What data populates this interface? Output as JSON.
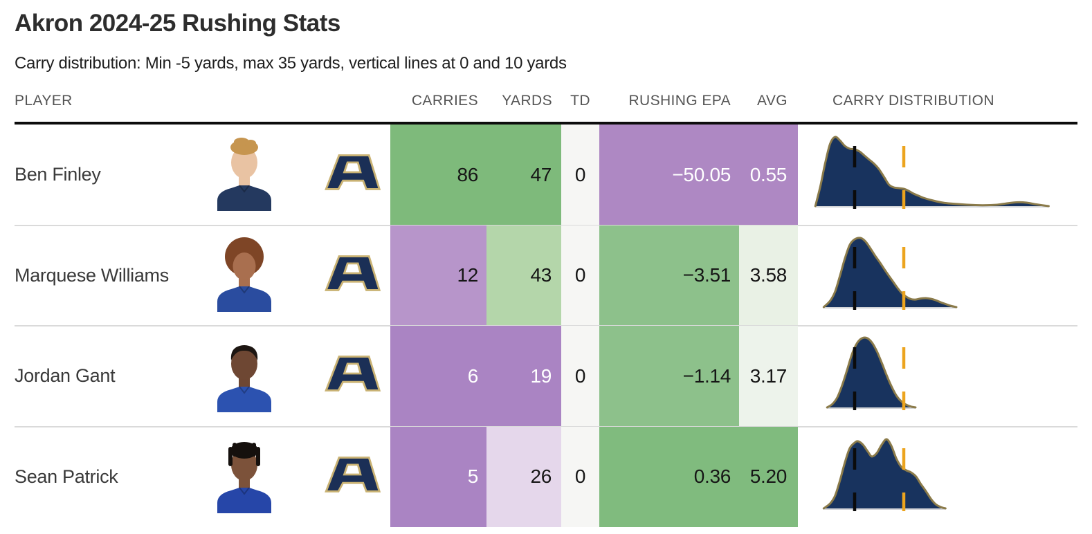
{
  "title": "Akron 2024-25 Rushing Stats",
  "subtitle": "Carry distribution: Min -5 yards, max 35 yards, vertical lines at 0 and 10 yards",
  "columns": {
    "player": "PLAYER",
    "carries": "CARRIES",
    "yards": "YARDS",
    "td": "TD",
    "rushing_epa": "RUSHING EPA",
    "avg": "AVG",
    "carry_distribution": "CARRY DISTRIBUTION"
  },
  "colors": {
    "density_fill": "#18335e",
    "density_stroke": "#8b7b4a",
    "vline_zero": "#0b0b0b",
    "vline_ten": "#eca41e",
    "baseline": "#c3c6ca",
    "separator": "#dadada",
    "header_rule": "#0d0d0d",
    "header_text": "#545454",
    "logo_navy": "#1b2f56",
    "logo_outline": "#c9b273"
  },
  "players": [
    {
      "name": "Ben Finley",
      "carries": "86",
      "yards": "47",
      "td": "0",
      "rushing_epa": "−50.05",
      "avg": "0.55",
      "cell_colors": {
        "carries_bg": "#7eba7b",
        "carries_fg": "#161616",
        "yards_bg": "#7eba7b",
        "yards_fg": "#161616",
        "td_bg": "#f6f6f4",
        "td_fg": "#161616",
        "epa_bg": "#ae88c3",
        "epa_fg": "#ffffff",
        "avg_bg": "#ae88c3",
        "avg_fg": "#ffffff"
      },
      "avatar": {
        "skin": "#e9c3a3",
        "hair": "#c6954f",
        "jersey": "#24395f",
        "hair_style": "quiff"
      }
    },
    {
      "name": "Marquese Williams",
      "carries": "12",
      "yards": "43",
      "td": "0",
      "rushing_epa": "−3.51",
      "avg": "3.58",
      "cell_colors": {
        "carries_bg": "#b795ca",
        "carries_fg": "#161616",
        "yards_bg": "#b4d6aa",
        "yards_fg": "#161616",
        "td_bg": "#f6f6f4",
        "td_fg": "#161616",
        "epa_bg": "#8dc18b",
        "epa_fg": "#161616",
        "avg_bg": "#e9f1e5",
        "avg_fg": "#161616"
      },
      "avatar": {
        "skin": "#a96f4f",
        "hair": "#7e4526",
        "jersey": "#2a4c9f",
        "hair_style": "afro"
      }
    },
    {
      "name": "Jordan Gant",
      "carries": "6",
      "yards": "19",
      "td": "0",
      "rushing_epa": "−1.14",
      "avg": "3.17",
      "cell_colors": {
        "carries_bg": "#aa84c3",
        "carries_fg": "#ffffff",
        "yards_bg": "#aa84c3",
        "yards_fg": "#ffffff",
        "td_bg": "#f6f6f4",
        "td_fg": "#161616",
        "epa_bg": "#8dc18b",
        "epa_fg": "#161616",
        "avg_bg": "#edf3eb",
        "avg_fg": "#161616"
      },
      "avatar": {
        "skin": "#6e4733",
        "hair": "#1d1612",
        "jersey": "#2c52b0",
        "hair_style": "short"
      }
    },
    {
      "name": "Sean Patrick",
      "carries": "5",
      "yards": "26",
      "td": "0",
      "rushing_epa": "0.36",
      "avg": "5.20",
      "cell_colors": {
        "carries_bg": "#aa84c3",
        "carries_fg": "#ffffff",
        "yards_bg": "#e5d7eb",
        "yards_fg": "#161616",
        "td_bg": "#f6f6f4",
        "td_fg": "#161616",
        "epa_bg": "#80bb7e",
        "epa_fg": "#161616",
        "avg_bg": "#80bb7e",
        "avg_fg": "#161616"
      },
      "avatar": {
        "skin": "#7c523a",
        "hair": "#15100d",
        "jersey": "#2646a8",
        "hair_style": "locs"
      }
    }
  ],
  "chart_data": {
    "type": "table",
    "title": "Akron 2024-25 Rushing Stats",
    "columns": [
      "PLAYER",
      "CARRIES",
      "YARDS",
      "TD",
      "RUSHING EPA",
      "AVG",
      "CARRY DISTRIBUTION"
    ],
    "rows": [
      {
        "player": "Ben Finley",
        "carries": 86,
        "yards": 47,
        "td": 0,
        "rushing_epa": -50.05,
        "avg": 0.55
      },
      {
        "player": "Marquese Williams",
        "carries": 12,
        "yards": 43,
        "td": 0,
        "rushing_epa": -3.51,
        "avg": 3.58
      },
      {
        "player": "Jordan Gant",
        "carries": 6,
        "yards": 19,
        "td": 0,
        "rushing_epa": -1.14,
        "avg": 3.17
      },
      {
        "player": "Sean Patrick",
        "carries": 5,
        "yards": 26,
        "td": 0,
        "rushing_epa": 0.36,
        "avg": 5.2
      }
    ],
    "distributions": {
      "type": "area",
      "x_range_yards": [
        -5,
        35
      ],
      "vlines_yards": [
        0,
        10
      ],
      "series": [
        {
          "name": "Ben Finley",
          "points": [
            [
              -8,
              0
            ],
            [
              -7,
              0.28
            ],
            [
              -6,
              0.62
            ],
            [
              -5,
              0.9
            ],
            [
              -4,
              1.0
            ],
            [
              -3,
              0.95
            ],
            [
              -2,
              0.87
            ],
            [
              -1,
              0.83
            ],
            [
              0,
              0.82
            ],
            [
              1,
              0.79
            ],
            [
              2,
              0.73
            ],
            [
              3,
              0.67
            ],
            [
              4,
              0.61
            ],
            [
              5,
              0.53
            ],
            [
              6,
              0.42
            ],
            [
              7,
              0.31
            ],
            [
              8,
              0.27
            ],
            [
              9,
              0.26
            ],
            [
              10,
              0.25
            ],
            [
              11,
              0.22
            ],
            [
              12,
              0.18
            ],
            [
              13,
              0.15
            ],
            [
              14,
              0.12
            ],
            [
              16,
              0.08
            ],
            [
              18,
              0.05
            ],
            [
              20,
              0.035
            ],
            [
              23,
              0.02
            ],
            [
              26,
              0.013
            ],
            [
              29,
              0.02
            ],
            [
              31,
              0.04
            ],
            [
              33,
              0.055
            ],
            [
              35,
              0.05
            ],
            [
              37,
              0.025
            ],
            [
              39.5,
              0
            ]
          ]
        },
        {
          "name": "Marquese Williams",
          "points": [
            [
              -6.3,
              0
            ],
            [
              -5,
              0.09
            ],
            [
              -4,
              0.22
            ],
            [
              -3,
              0.45
            ],
            [
              -2,
              0.7
            ],
            [
              -1,
              0.9
            ],
            [
              0,
              0.98
            ],
            [
              1.2,
              1.0
            ],
            [
              2.2,
              0.95
            ],
            [
              3.2,
              0.85
            ],
            [
              4.2,
              0.74
            ],
            [
              5.2,
              0.64
            ],
            [
              6.5,
              0.5
            ],
            [
              7.5,
              0.4
            ],
            [
              8.5,
              0.3
            ],
            [
              9.5,
              0.21
            ],
            [
              10.5,
              0.15
            ],
            [
              11.5,
              0.115
            ],
            [
              12.5,
              0.11
            ],
            [
              13.5,
              0.125
            ],
            [
              14.5,
              0.13
            ],
            [
              15.5,
              0.12
            ],
            [
              16.5,
              0.1
            ],
            [
              17.5,
              0.07
            ],
            [
              18.5,
              0.045
            ],
            [
              19.5,
              0.02
            ],
            [
              20.7,
              0
            ]
          ]
        },
        {
          "name": "Jordan Gant",
          "points": [
            [
              -5.6,
              0
            ],
            [
              -4.5,
              0.05
            ],
            [
              -3.5,
              0.15
            ],
            [
              -2.5,
              0.33
            ],
            [
              -1.5,
              0.55
            ],
            [
              -0.5,
              0.78
            ],
            [
              0.5,
              0.93
            ],
            [
              1.5,
              1.0
            ],
            [
              2.6,
              1.0
            ],
            [
              3.6,
              0.93
            ],
            [
              4.6,
              0.8
            ],
            [
              5.6,
              0.63
            ],
            [
              6.6,
              0.45
            ],
            [
              7.6,
              0.29
            ],
            [
              8.6,
              0.16
            ],
            [
              9.6,
              0.08
            ],
            [
              10.6,
              0.035
            ],
            [
              11.5,
              0.012
            ],
            [
              12.4,
              0
            ]
          ]
        },
        {
          "name": "Sean Patrick",
          "points": [
            [
              -6.3,
              0
            ],
            [
              -5,
              0.07
            ],
            [
              -4,
              0.18
            ],
            [
              -3,
              0.4
            ],
            [
              -2,
              0.66
            ],
            [
              -1,
              0.87
            ],
            [
              0,
              0.95
            ],
            [
              0.7,
              0.97
            ],
            [
              1.7,
              0.92
            ],
            [
              2.7,
              0.82
            ],
            [
              3.5,
              0.75
            ],
            [
              4.5,
              0.8
            ],
            [
              5.5,
              0.92
            ],
            [
              6.5,
              1.0
            ],
            [
              7.5,
              0.9
            ],
            [
              8.5,
              0.72
            ],
            [
              9.5,
              0.6
            ],
            [
              10.5,
              0.55
            ],
            [
              11.5,
              0.52
            ],
            [
              12.5,
              0.46
            ],
            [
              13.5,
              0.35
            ],
            [
              14.5,
              0.25
            ],
            [
              15.5,
              0.14
            ],
            [
              16.5,
              0.06
            ],
            [
              17.5,
              0.02
            ],
            [
              18.5,
              0
            ]
          ]
        }
      ]
    }
  }
}
